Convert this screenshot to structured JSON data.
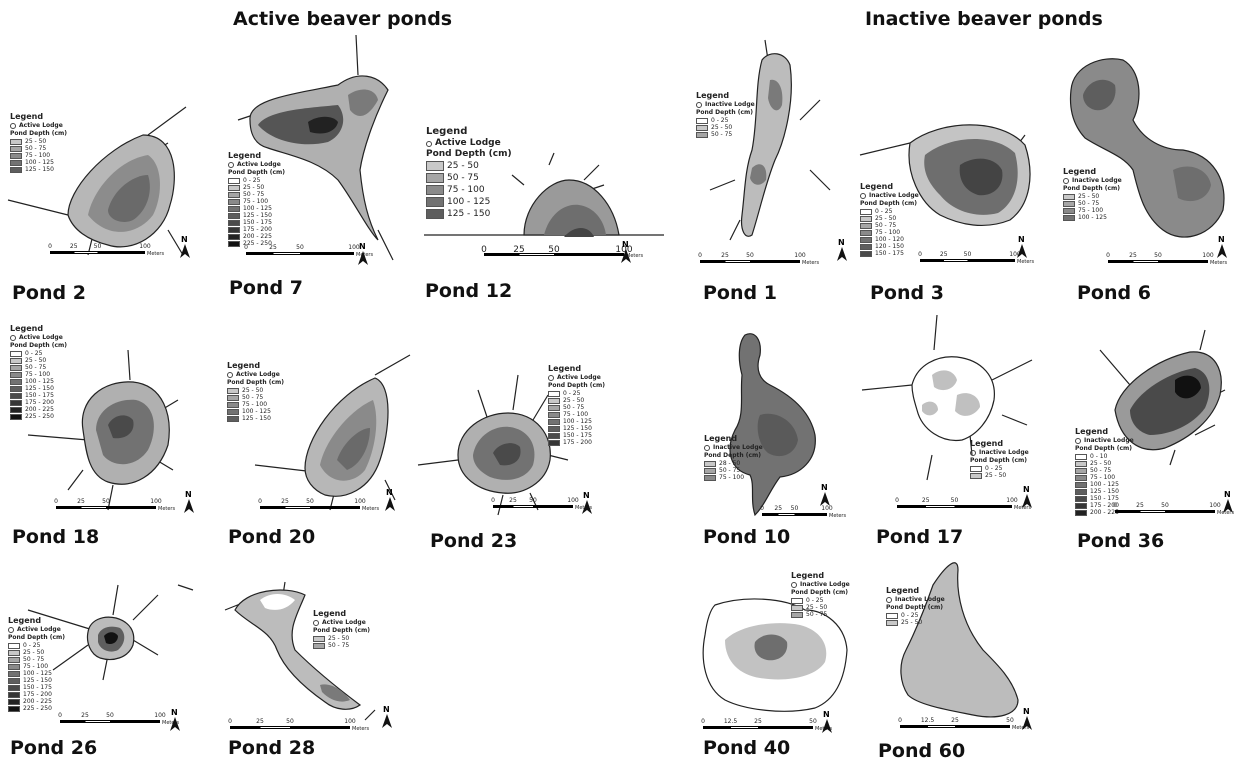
{
  "titles": {
    "active": "Active beaver ponds",
    "inactive": "Inactive beaver ponds"
  },
  "colors": {
    "depth_ramp": [
      "#ffffff",
      "#c8c8c8",
      "#a6a6a6",
      "#8a8a8a",
      "#727272",
      "#5e5e5e",
      "#4a4a4a",
      "#363636",
      "#222222",
      "#111111"
    ]
  },
  "ponds": [
    {
      "id": "p2",
      "label": "Pond 2",
      "legend": {
        "title": "Legend",
        "lodge": "Active Lodge",
        "subtitle": "Pond Depth (cm)",
        "classes": [
          "25 - 50",
          "50 - 75",
          "75 - 100",
          "100 - 125",
          "125 - 150"
        ]
      },
      "scale": {
        "ticks": [
          "0",
          "25",
          "50",
          "100"
        ],
        "unit": "Meters"
      }
    },
    {
      "id": "p7",
      "label": "Pond 7",
      "legend": {
        "title": "Legend",
        "lodge": "Active Lodge",
        "subtitle": "Pond Depth (cm)",
        "classes": [
          "0 - 25",
          "25 - 50",
          "50 - 75",
          "75 - 100",
          "100 - 125",
          "125 - 150",
          "150 - 175",
          "175 - 200",
          "200 - 225",
          "225 - 250"
        ]
      },
      "scale": {
        "ticks": [
          "0",
          "25",
          "50",
          "100"
        ],
        "unit": "Meters"
      }
    },
    {
      "id": "p12",
      "label": "Pond 12",
      "legend": {
        "title": "Legend",
        "lodge": "Active Lodge",
        "subtitle": "Pond Depth (cm)",
        "classes": [
          "25 - 50",
          "50 - 75",
          "75 - 100",
          "100 - 125",
          "125 - 150"
        ]
      },
      "scale": {
        "ticks": [
          "0",
          "25",
          "50",
          "100"
        ],
        "unit": "Meters"
      }
    },
    {
      "id": "p18",
      "label": "Pond 18",
      "legend": {
        "title": "Legend",
        "lodge": "Active Lodge",
        "subtitle": "Pond Depth (cm)",
        "classes": [
          "0 - 25",
          "25 - 50",
          "50 - 75",
          "75 - 100",
          "100 - 125",
          "125 - 150",
          "150 - 175",
          "175 - 200",
          "200 - 225",
          "225 - 250"
        ]
      },
      "scale": {
        "ticks": [
          "0",
          "25",
          "50",
          "100"
        ],
        "unit": "Meters"
      }
    },
    {
      "id": "p20",
      "label": "Pond 20",
      "legend": {
        "title": "Legend",
        "lodge": "Active Lodge",
        "subtitle": "Pond Depth (cm)",
        "classes": [
          "25 - 50",
          "50 - 75",
          "75 - 100",
          "100 - 125",
          "125 - 150"
        ]
      },
      "scale": {
        "ticks": [
          "0",
          "25",
          "50",
          "100"
        ],
        "unit": "Meters"
      }
    },
    {
      "id": "p23",
      "label": "Pond 23",
      "legend": {
        "title": "Legend",
        "lodge": "Active Lodge",
        "subtitle": "Pond Depth (cm)",
        "classes": [
          "0 - 25",
          "25 - 50",
          "50 - 75",
          "75 - 100",
          "100 - 125",
          "125 - 150",
          "150 - 175",
          "175 - 200"
        ]
      },
      "scale": {
        "ticks": [
          "0",
          "25",
          "50",
          "100"
        ],
        "unit": "Meters"
      }
    },
    {
      "id": "p26",
      "label": "Pond 26",
      "legend": {
        "title": "Legend",
        "lodge": "Active Lodge",
        "subtitle": "Pond Depth (cm)",
        "classes": [
          "0 - 25",
          "25 - 50",
          "50 - 75",
          "75 - 100",
          "100 - 125",
          "125 - 150",
          "150 - 175",
          "175 - 200",
          "200 - 225",
          "225 - 250"
        ]
      },
      "scale": {
        "ticks": [
          "0",
          "25",
          "50",
          "100"
        ],
        "unit": "Meters"
      }
    },
    {
      "id": "p28",
      "label": "Pond 28",
      "legend": {
        "title": "Legend",
        "lodge": "Active Lodge",
        "subtitle": "Pond Depth (cm)",
        "classes": [
          "25 - 50",
          "50 - 75"
        ]
      },
      "scale": {
        "ticks": [
          "0",
          "25",
          "50",
          "100"
        ],
        "unit": "Meters"
      }
    },
    {
      "id": "p1",
      "label": "Pond 1",
      "legend": {
        "title": "Legend",
        "lodge": "Inactive Lodge",
        "subtitle": "Pond Depth (cm)",
        "classes": [
          "0 - 25",
          "25 - 50",
          "50 - 75"
        ]
      },
      "scale": {
        "ticks": [
          "0",
          "25",
          "50",
          "100"
        ],
        "unit": "Meters"
      }
    },
    {
      "id": "p3",
      "label": "Pond 3",
      "legend": {
        "title": "Legend",
        "lodge": "Inactive Lodge",
        "subtitle": "Pond Depth (cm)",
        "classes": [
          "0 - 25",
          "25 - 50",
          "50 - 75",
          "75 - 100",
          "100 - 120",
          "120 - 150",
          "150 - 175"
        ]
      },
      "scale": {
        "ticks": [
          "0",
          "25",
          "50",
          "100"
        ],
        "unit": "Meters"
      }
    },
    {
      "id": "p6",
      "label": "Pond 6",
      "legend": {
        "title": "Legend",
        "lodge": "Inactive Lodge",
        "subtitle": "Pond Depth (cm)",
        "classes": [
          "25 - 50",
          "50 - 75",
          "75 - 100",
          "100 - 125"
        ]
      },
      "scale": {
        "ticks": [
          "0",
          "25",
          "50",
          "100"
        ],
        "unit": "Meters"
      }
    },
    {
      "id": "p10",
      "label": "Pond 10",
      "legend": {
        "title": "Legend",
        "lodge": "Inactive Lodge",
        "subtitle": "Pond Depth (cm)",
        "classes": [
          "28 - 50",
          "50 - 75",
          "75 - 100"
        ]
      },
      "scale": {
        "ticks": [
          "0",
          "25",
          "50",
          "100"
        ],
        "unit": "Meters"
      }
    },
    {
      "id": "p17",
      "label": "Pond 17",
      "legend": {
        "title": "Legend",
        "lodge": "Inactive Lodge",
        "subtitle": "Pond Depth (cm)",
        "classes": [
          "0 - 25",
          "25 - 50"
        ]
      },
      "scale": {
        "ticks": [
          "0",
          "25",
          "50",
          "100"
        ],
        "unit": "Meters"
      }
    },
    {
      "id": "p36",
      "label": "Pond 36",
      "legend": {
        "title": "Legend",
        "lodge": "Inactive Lodge",
        "subtitle": "Pond Depth (cm)",
        "classes": [
          "0 - 10",
          "25 - 50",
          "50 - 75",
          "75 - 100",
          "100 - 125",
          "125 - 150",
          "150 - 175",
          "175 - 200",
          "200 - 225"
        ]
      },
      "scale": {
        "ticks": [
          "0",
          "25",
          "50",
          "100"
        ],
        "unit": "Meters"
      }
    },
    {
      "id": "p40",
      "label": "Pond 40",
      "legend": {
        "title": "Legend",
        "lodge": "Inactive Lodge",
        "subtitle": "Pond Depth (cm)",
        "classes": [
          "0 - 25",
          "25 - 50",
          "50 - 75"
        ]
      },
      "scale": {
        "ticks": [
          "0",
          "12.5",
          "25",
          "50"
        ],
        "unit": "Meters"
      }
    },
    {
      "id": "p60",
      "label": "Pond 60",
      "legend": {
        "title": "Legend",
        "lodge": "Inactive Lodge",
        "subtitle": "Pond Depth (cm)",
        "classes": [
          "0 - 25",
          "25 - 50"
        ]
      },
      "scale": {
        "ticks": [
          "0",
          "12.5",
          "25",
          "50"
        ],
        "unit": "Meters"
      }
    }
  ]
}
